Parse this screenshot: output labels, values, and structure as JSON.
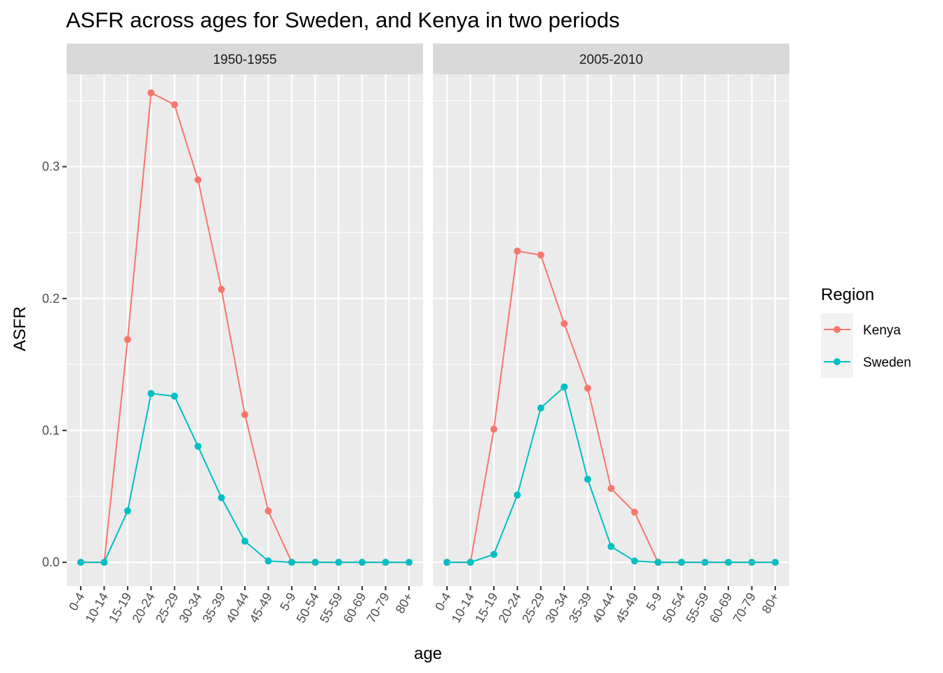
{
  "chart_data": {
    "type": "line",
    "title": "ASFR across ages for Sweden, and Kenya in two periods",
    "xlabel": "age",
    "ylabel": "ASFR",
    "categories": [
      "0-4",
      "10-14",
      "15-19",
      "20-24",
      "25-29",
      "30-34",
      "35-39",
      "40-44",
      "45-49",
      "5-9",
      "50-54",
      "55-59",
      "60-69",
      "70-79",
      "80+"
    ],
    "ylim": [
      -0.018,
      0.37
    ],
    "yticks": [
      0.0,
      0.1,
      0.2,
      0.3
    ],
    "ytick_labels": [
      "0.0",
      "0.1",
      "0.2",
      "0.3"
    ],
    "grid": true,
    "legend": {
      "title": "Region",
      "position": "right"
    },
    "colors": {
      "Kenya": "#F8766D",
      "Sweden": "#00BFC4"
    },
    "panels": [
      {
        "label": "1950-1955",
        "series": [
          {
            "name": "Kenya",
            "values": [
              0,
              0,
              0.169,
              0.356,
              0.347,
              0.29,
              0.207,
              0.112,
              0.039,
              0,
              0,
              0,
              0,
              0,
              0
            ]
          },
          {
            "name": "Sweden",
            "values": [
              0,
              0,
              0.039,
              0.128,
              0.126,
              0.088,
              0.049,
              0.016,
              0.001,
              0,
              0,
              0,
              0,
              0,
              0
            ]
          }
        ]
      },
      {
        "label": "2005-2010",
        "series": [
          {
            "name": "Kenya",
            "values": [
              0,
              0,
              0.101,
              0.236,
              0.233,
              0.181,
              0.132,
              0.056,
              0.038,
              0,
              0,
              0,
              0,
              0,
              0
            ]
          },
          {
            "name": "Sweden",
            "values": [
              0,
              0,
              0.006,
              0.051,
              0.117,
              0.133,
              0.063,
              0.012,
              0.001,
              0,
              0,
              0,
              0,
              0,
              0
            ]
          }
        ]
      }
    ]
  }
}
